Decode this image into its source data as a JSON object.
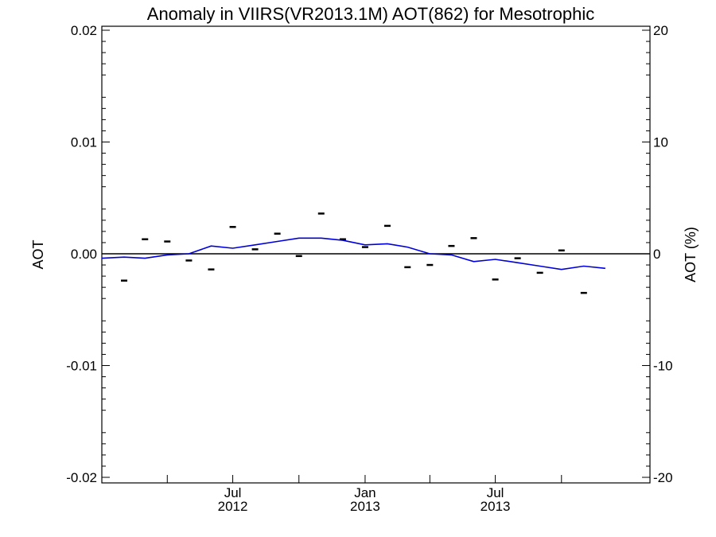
{
  "chart_data": {
    "type": "line",
    "title": "Anomaly in VIIRS(VR2013.1M) AOT(862) for Mesotrophic",
    "ylabel": "AOT",
    "ylabel_right": "AOT (%)",
    "ylim": [
      -0.02,
      0.02
    ],
    "ylim_right": [
      -20,
      20
    ],
    "xlim": [
      "2012-01-01",
      "2014-02-01"
    ],
    "y_ticks": [
      "-0.02",
      "-0.01",
      "0.00",
      "0.01",
      "0.02"
    ],
    "y_ticks_right": [
      "-20",
      "-10",
      "0",
      "10",
      "20"
    ],
    "x_ticks": [
      {
        "month": "Jul",
        "year": "2012",
        "date": "2012-07-01"
      },
      {
        "month": "Jan",
        "year": "2013",
        "date": "2013-01-01"
      },
      {
        "month": "Jul",
        "year": "2013",
        "date": "2013-07-01"
      }
    ],
    "zero_line": true,
    "grid": false,
    "series": [
      {
        "kind": "markers",
        "color": "#000000",
        "points": [
          {
            "x": "2012-02-01",
            "y": -0.0024
          },
          {
            "x": "2012-03-01",
            "y": 0.0013
          },
          {
            "x": "2012-04-01",
            "y": 0.0011
          },
          {
            "x": "2012-05-01",
            "y": -0.0006
          },
          {
            "x": "2012-06-01",
            "y": -0.0014
          },
          {
            "x": "2012-07-01",
            "y": 0.0024
          },
          {
            "x": "2012-08-01",
            "y": 0.0004
          },
          {
            "x": "2012-09-01",
            "y": 0.0018
          },
          {
            "x": "2012-10-01",
            "y": -0.0002
          },
          {
            "x": "2012-11-01",
            "y": 0.0036
          },
          {
            "x": "2012-12-01",
            "y": 0.0013
          },
          {
            "x": "2013-01-01",
            "y": 0.0006
          },
          {
            "x": "2013-02-01",
            "y": 0.0025
          },
          {
            "x": "2013-03-01",
            "y": -0.0012
          },
          {
            "x": "2013-04-01",
            "y": -0.001
          },
          {
            "x": "2013-05-01",
            "y": 0.0007
          },
          {
            "x": "2013-06-01",
            "y": 0.0014
          },
          {
            "x": "2013-07-01",
            "y": -0.0023
          },
          {
            "x": "2013-08-01",
            "y": -0.0004
          },
          {
            "x": "2013-09-01",
            "y": -0.0017
          },
          {
            "x": "2013-10-01",
            "y": 0.0003
          },
          {
            "x": "2013-11-01",
            "y": -0.0035
          }
        ]
      },
      {
        "kind": "line",
        "color": "#0000dd",
        "points": [
          {
            "x": "2012-01-01",
            "y": -0.0004
          },
          {
            "x": "2012-02-01",
            "y": -0.0003
          },
          {
            "x": "2012-03-01",
            "y": -0.0004
          },
          {
            "x": "2012-04-01",
            "y": -0.0001
          },
          {
            "x": "2012-05-01",
            "y": 0.0
          },
          {
            "x": "2012-06-01",
            "y": 0.0007
          },
          {
            "x": "2012-07-01",
            "y": 0.0005
          },
          {
            "x": "2012-08-01",
            "y": 0.0008
          },
          {
            "x": "2012-09-01",
            "y": 0.0011
          },
          {
            "x": "2012-10-01",
            "y": 0.0014
          },
          {
            "x": "2012-11-01",
            "y": 0.0014
          },
          {
            "x": "2012-12-01",
            "y": 0.0012
          },
          {
            "x": "2013-01-01",
            "y": 0.0008
          },
          {
            "x": "2013-02-01",
            "y": 0.0009
          },
          {
            "x": "2013-03-01",
            "y": 0.0006
          },
          {
            "x": "2013-04-01",
            "y": 0.0
          },
          {
            "x": "2013-05-01",
            "y": -0.0001
          },
          {
            "x": "2013-06-01",
            "y": -0.0007
          },
          {
            "x": "2013-07-01",
            "y": -0.0005
          },
          {
            "x": "2013-08-01",
            "y": -0.0008
          },
          {
            "x": "2013-09-01",
            "y": -0.0011
          },
          {
            "x": "2013-10-01",
            "y": -0.0014
          },
          {
            "x": "2013-11-01",
            "y": -0.0011
          },
          {
            "x": "2013-12-01",
            "y": -0.0013
          }
        ]
      }
    ]
  }
}
